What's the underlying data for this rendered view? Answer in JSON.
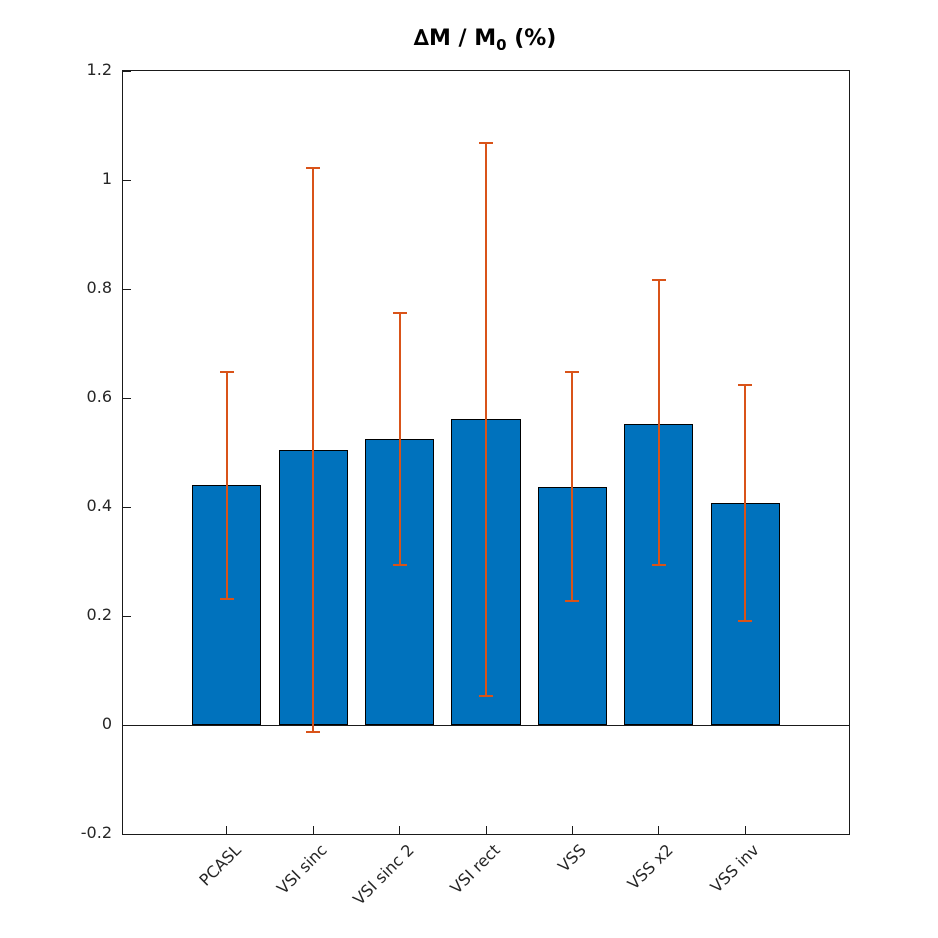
{
  "title": {
    "prefix": "∆M / M",
    "sub": "0",
    "suffix": " (%)"
  },
  "chart_data": {
    "type": "bar",
    "title": "∆M / M_0 (%)",
    "categories": [
      "PCASL",
      "VSI sinc",
      "VSI sinc 2",
      "VSI rect",
      "VSS",
      "VSS x2",
      "VSS inv"
    ],
    "values": [
      0.44,
      0.505,
      0.524,
      0.562,
      0.436,
      0.553,
      0.407
    ],
    "error_high": [
      0.648,
      1.022,
      0.756,
      1.068,
      0.647,
      0.816,
      0.623
    ],
    "error_low": [
      0.232,
      -0.012,
      0.293,
      0.054,
      0.227,
      0.293,
      0.19
    ],
    "xlabel": "",
    "ylabel": "",
    "ylim": [
      -0.2,
      1.2
    ],
    "yticks": [
      -0.2,
      0,
      0.2,
      0.4,
      0.6,
      0.8,
      1,
      1.2
    ],
    "ytick_labels": [
      "-0.2",
      "0",
      "0.2",
      "0.4",
      "0.6",
      "0.8",
      "1",
      "1.2"
    ],
    "xlim": [
      -0.2,
      8.2
    ],
    "bar_width_units": 0.8,
    "xtick_rotation_deg": 45,
    "grid": false,
    "legend": null,
    "colors": {
      "bar_fill": "#0072BD",
      "bar_edge": "#000000",
      "error_bar": "#D95319",
      "axis": "#1a1a1a",
      "tick_label": "#262626",
      "background": "#ffffff"
    }
  }
}
